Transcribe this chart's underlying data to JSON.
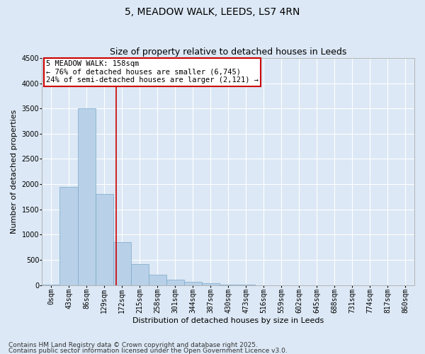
{
  "title": "5, MEADOW WALK, LEEDS, LS7 4RN",
  "subtitle": "Size of property relative to detached houses in Leeds",
  "xlabel": "Distribution of detached houses by size in Leeds",
  "ylabel": "Number of detached properties",
  "bar_labels": [
    "0sqm",
    "43sqm",
    "86sqm",
    "129sqm",
    "172sqm",
    "215sqm",
    "258sqm",
    "301sqm",
    "344sqm",
    "387sqm",
    "430sqm",
    "473sqm",
    "516sqm",
    "559sqm",
    "602sqm",
    "645sqm",
    "688sqm",
    "731sqm",
    "774sqm",
    "817sqm",
    "860sqm"
  ],
  "bar_values": [
    5,
    1950,
    3500,
    1800,
    850,
    420,
    200,
    110,
    60,
    30,
    12,
    5,
    0,
    0,
    0,
    0,
    0,
    0,
    0,
    0,
    0
  ],
  "bar_color": "#b8d0e8",
  "bar_edge_color": "#7aaac8",
  "background_color": "#dce8f5",
  "grid_color": "#ffffff",
  "vline_x_index": 3.67,
  "vline_color": "#cc0000",
  "annotation_box_text": "5 MEADOW WALK: 158sqm\n← 76% of detached houses are smaller (6,745)\n24% of semi-detached houses are larger (2,121) →",
  "annotation_box_color": "#cc0000",
  "annotation_box_bg": "#ffffff",
  "ylim": [
    0,
    4500
  ],
  "yticks": [
    0,
    500,
    1000,
    1500,
    2000,
    2500,
    3000,
    3500,
    4000,
    4500
  ],
  "footnote1": "Contains HM Land Registry data © Crown copyright and database right 2025.",
  "footnote2": "Contains public sector information licensed under the Open Government Licence v3.0.",
  "title_fontsize": 10,
  "subtitle_fontsize": 9,
  "axis_label_fontsize": 8,
  "tick_fontsize": 7,
  "annotation_fontsize": 7.5,
  "footnote_fontsize": 6.5
}
